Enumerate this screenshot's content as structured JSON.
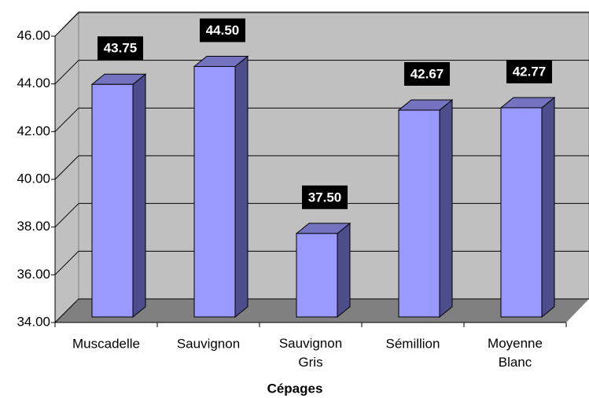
{
  "chart_data": {
    "type": "bar3d",
    "x_label": "Cépages",
    "categories": [
      "Muscadelle",
      "Sauvignon",
      "Sauvignon Gris",
      "Sémillion",
      "Moyenne Blanc"
    ],
    "values": [
      43.75,
      44.5,
      37.5,
      42.67,
      42.77
    ],
    "value_labels": [
      "43.75",
      "44.50",
      "37.50",
      "42.67",
      "42.77"
    ],
    "color": "#9999ff",
    "ylim": [
      34,
      46
    ],
    "yticks": [
      {
        "value": 34,
        "label": "34.00"
      },
      {
        "value": 36,
        "label": "36.00"
      },
      {
        "value": 38,
        "label": "38.00"
      },
      {
        "value": 40,
        "label": "40.00"
      },
      {
        "value": 42,
        "label": "42.00"
      },
      {
        "value": 44,
        "label": "44.00"
      },
      {
        "value": 46,
        "label": "46.00"
      }
    ],
    "grid": true
  }
}
